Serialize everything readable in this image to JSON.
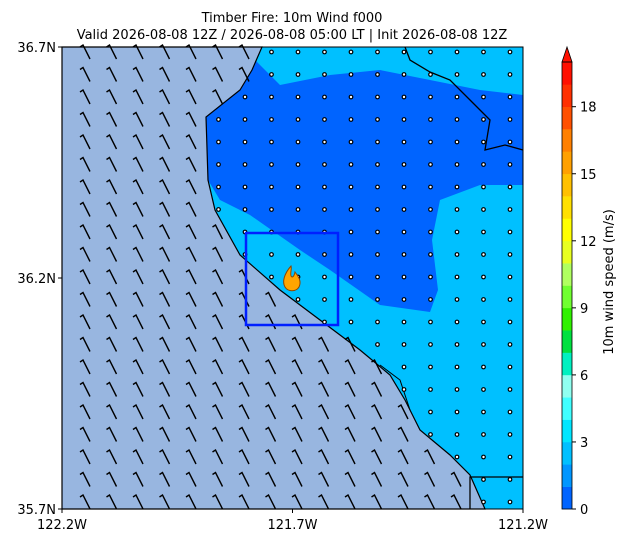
{
  "chart_data": {
    "type": "map",
    "title": "Timber Fire: 10m Wind f000",
    "subtitle": "Valid 2026-08-08 12Z / 2026-08-08 05:00 LT | Init 2026-08-08 12Z",
    "xlim": [
      -122.2,
      -121.2
    ],
    "ylim": [
      35.7,
      36.7
    ],
    "xticks": [
      {
        "value": -122.2,
        "label": "122.2W"
      },
      {
        "value": -121.7,
        "label": "121.7W"
      },
      {
        "value": -121.2,
        "label": "121.2W"
      }
    ],
    "yticks": [
      {
        "value": 35.7,
        "label": "35.7N"
      },
      {
        "value": 36.2,
        "label": "36.2N"
      },
      {
        "value": 36.7,
        "label": "36.7N"
      }
    ],
    "colorbar": {
      "label": "10m wind speed (m/s)",
      "levels": [
        0,
        1,
        2,
        3,
        4,
        5,
        6,
        7,
        8,
        9,
        10,
        11,
        12,
        13,
        14,
        15,
        16,
        17,
        18,
        19,
        20
      ],
      "colors": [
        "#0064ff",
        "#0096ff",
        "#00c0ff",
        "#00e6ff",
        "#40ffff",
        "#90fff0",
        "#00f0c0",
        "#00e040",
        "#30f000",
        "#70ff30",
        "#b0ff60",
        "#e8ff20",
        "#ffff00",
        "#ffe000",
        "#ffc000",
        "#ffa000",
        "#ff8000",
        "#ff5000",
        "#ff3000",
        "#ff1000"
      ],
      "ticks": [
        0,
        3,
        6,
        9,
        12,
        15,
        18
      ]
    }
  }
}
